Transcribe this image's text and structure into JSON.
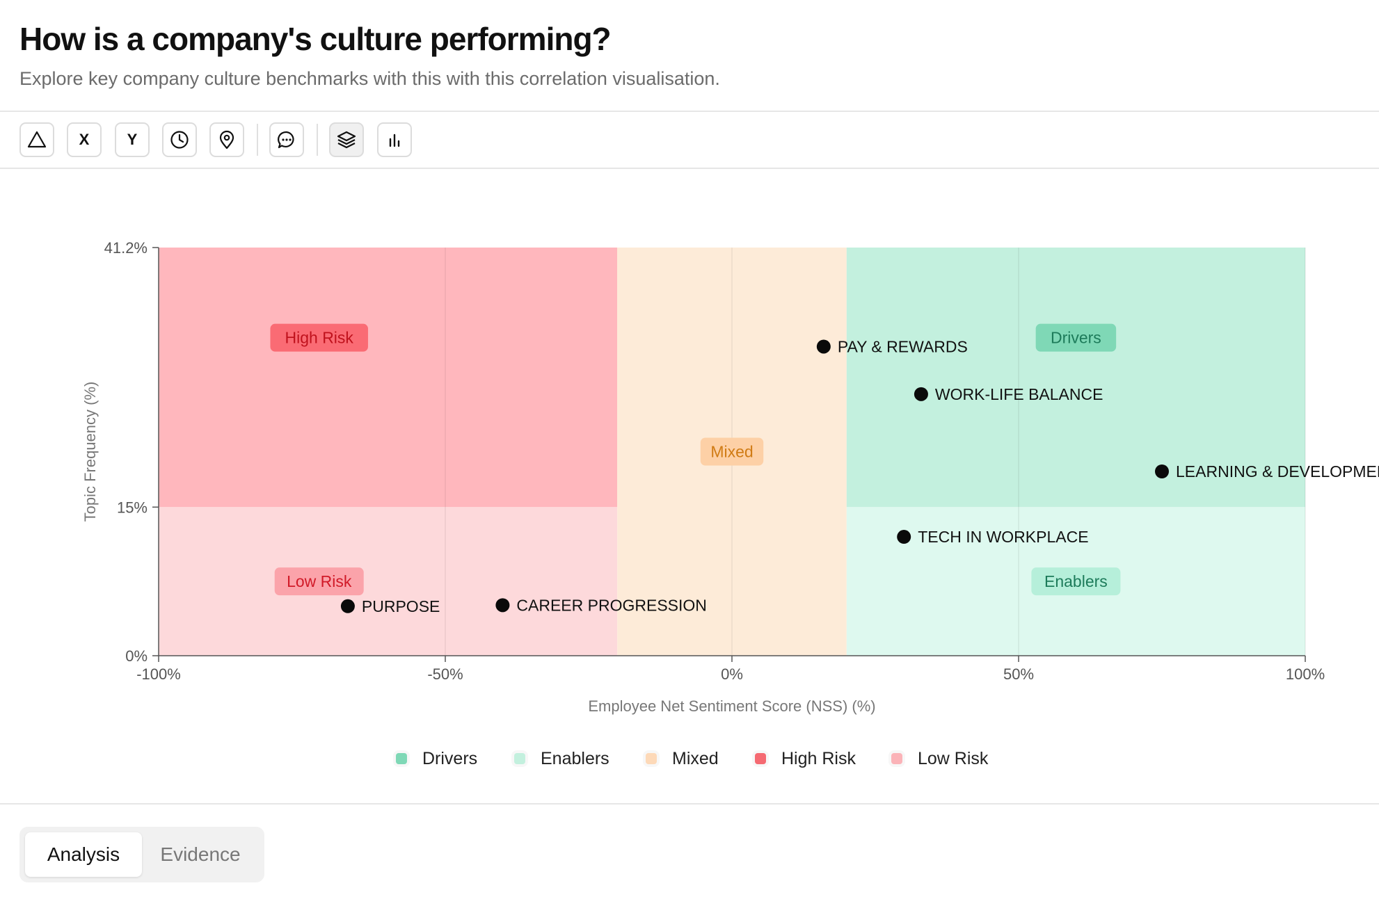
{
  "header": {
    "title": "How is a company's culture performing?",
    "subtitle": "Explore key company culture benchmarks with this with this correlation visualisation."
  },
  "toolbar": {
    "buttons": [
      {
        "name": "triangle-icon",
        "label": ""
      },
      {
        "name": "x-axis-button",
        "label": "X"
      },
      {
        "name": "y-axis-button",
        "label": "Y"
      },
      {
        "name": "clock-icon",
        "label": ""
      },
      {
        "name": "location-pin-icon",
        "label": ""
      },
      {
        "name": "comment-icon",
        "label": ""
      },
      {
        "name": "layers-icon",
        "label": ""
      },
      {
        "name": "bar-chart-icon",
        "label": ""
      }
    ]
  },
  "chart_data": {
    "type": "scatter",
    "xlabel": "Employee Net Sentiment Score (NSS) (%)",
    "ylabel": "Topic Frequency (%)",
    "xlim": [
      -100,
      100
    ],
    "ylim": [
      0,
      41.2
    ],
    "x_ticks": [
      "-100%",
      "-50%",
      "0%",
      "50%",
      "100%"
    ],
    "y_ticks": [
      "0%",
      "15%",
      "41.2%"
    ],
    "grid": true,
    "legend_position": "bottom",
    "regions": [
      {
        "name": "High Risk",
        "x": [
          -100,
          -20
        ],
        "y": [
          15,
          41.2
        ],
        "color": "#ffb7bd",
        "label_bg": "#fa6b74",
        "label_color": "#c0121d"
      },
      {
        "name": "Low Risk",
        "x": [
          -100,
          -20
        ],
        "y": [
          0,
          15
        ],
        "color": "#fdd9db",
        "label_bg": "#fba3aa",
        "label_color": "#d11a28"
      },
      {
        "name": "Mixed",
        "x": [
          -20,
          20
        ],
        "y": [
          0,
          41.2
        ],
        "color": "#fdebd8",
        "label_bg": "#fdd0a6",
        "label_color": "#d07b14"
      },
      {
        "name": "Drivers",
        "x": [
          20,
          100
        ],
        "y": [
          15,
          41.2
        ],
        "color": "#c3f0de",
        "label_bg": "#7fd8b6",
        "label_color": "#1d7b5a"
      },
      {
        "name": "Enablers",
        "x": [
          20,
          100
        ],
        "y": [
          0,
          15
        ],
        "color": "#def9ef",
        "label_bg": "#b6efda",
        "label_color": "#1d7b5a"
      }
    ],
    "points": [
      {
        "label": "PAY & REWARDS",
        "x": 16,
        "y": 31.2
      },
      {
        "label": "WORK-LIFE BALANCE",
        "x": 33,
        "y": 26.4
      },
      {
        "label": "LEARNING & DEVELOPMEN",
        "x": 75,
        "y": 18.6
      },
      {
        "label": "TECH IN WORKPLACE",
        "x": 30,
        "y": 12
      },
      {
        "label": "PURPOSE",
        "x": -67,
        "y": 5
      },
      {
        "label": "CAREER PROGRESSION",
        "x": -40,
        "y": 5.1
      }
    ]
  },
  "legend": [
    {
      "label": "Drivers",
      "color": "#7fd8b6"
    },
    {
      "label": "Enablers",
      "color": "#c3f0de"
    },
    {
      "label": "Mixed",
      "color": "#fdd9b8"
    },
    {
      "label": "High Risk",
      "color": "#f56a72"
    },
    {
      "label": "Low Risk",
      "color": "#fbb3b8"
    }
  ],
  "tabs": [
    {
      "label": "Analysis",
      "active": true
    },
    {
      "label": "Evidence",
      "active": false
    }
  ]
}
